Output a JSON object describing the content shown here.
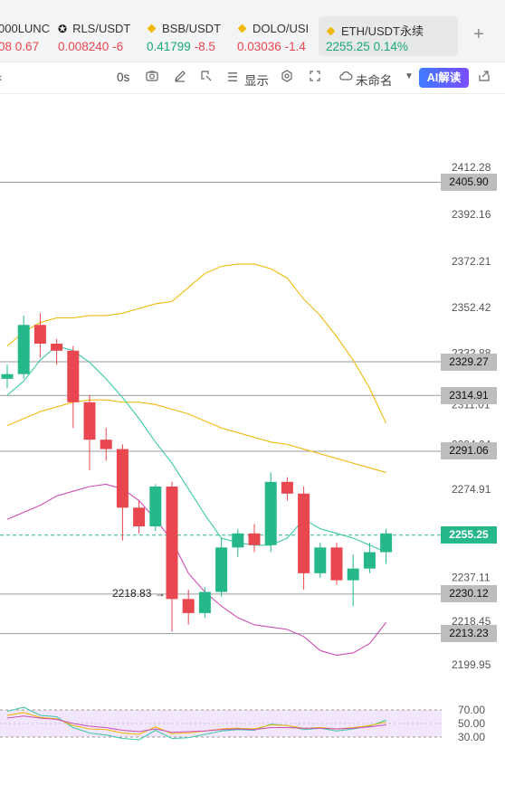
{
  "tabs": [
    {
      "name": "000LUNC",
      "price": "08",
      "change": "0.67",
      "icon": "none",
      "trend": "neg"
    },
    {
      "name": "RLS/USDT",
      "price": "0.008240",
      "change": "-6",
      "icon": "rls-icon",
      "trend": "neg"
    },
    {
      "name": "BSB/USDT",
      "price": "0.41799",
      "change": "-8.5",
      "icon": "diamond-icon",
      "trend": "pos"
    },
    {
      "name": "DOLO/USI",
      "price": "0.03036",
      "change": "-1.4",
      "icon": "diamond-icon",
      "trend": "neg"
    },
    {
      "name": "ETH/USDT永续",
      "price": "2255.25",
      "change": "0.14%",
      "icon": "diamond-icon",
      "trend": "pos"
    }
  ],
  "add_tab_label": "+",
  "toolbar": {
    "interval": "0s",
    "display_label": "显示",
    "layout_name": "未命名",
    "ai_label": "AI解读"
  },
  "chart_data": {
    "type": "candlestick",
    "symbol": "ETH/USDT永续",
    "y_ticks": [
      "2412.28",
      "2392.16",
      "2372.21",
      "2352.42",
      "2332.88",
      "2311.01",
      "2294.04",
      "2274.91",
      "2237.11",
      "2218.45",
      "2199.95"
    ],
    "ylim": [
      2195,
      2418
    ],
    "price_lines": [
      {
        "label": "2405.90",
        "value": 2405.9
      },
      {
        "label": "2329.27",
        "value": 2329.27
      },
      {
        "label": "2314.91",
        "value": 2314.91
      },
      {
        "label": "2291.06",
        "value": 2291.06
      },
      {
        "label": "2230.12",
        "value": 2230.12
      },
      {
        "label": "2213.23",
        "value": 2213.23
      }
    ],
    "last_price": {
      "label": "2255.25",
      "value": 2255.25
    },
    "low_marker": {
      "label": "2218.83",
      "value": 2218.83
    },
    "candles": [
      {
        "o": 2322,
        "h": 2328,
        "l": 2318,
        "c": 2324
      },
      {
        "o": 2324,
        "h": 2349,
        "l": 2322,
        "c": 2345
      },
      {
        "o": 2345,
        "h": 2350,
        "l": 2331,
        "c": 2337
      },
      {
        "o": 2337,
        "h": 2339,
        "l": 2328,
        "c": 2334
      },
      {
        "o": 2334,
        "h": 2336,
        "l": 2301,
        "c": 2312
      },
      {
        "o": 2312,
        "h": 2315,
        "l": 2283,
        "c": 2296
      },
      {
        "o": 2296,
        "h": 2301,
        "l": 2287,
        "c": 2292
      },
      {
        "o": 2292,
        "h": 2294,
        "l": 2253,
        "c": 2267
      },
      {
        "o": 2267,
        "h": 2270,
        "l": 2256,
        "c": 2259
      },
      {
        "o": 2259,
        "h": 2277,
        "l": 2257,
        "c": 2276
      },
      {
        "o": 2276,
        "h": 2278,
        "l": 2214,
        "c": 2228
      },
      {
        "o": 2228,
        "h": 2232,
        "l": 2217,
        "c": 2222
      },
      {
        "o": 2222,
        "h": 2233,
        "l": 2220,
        "c": 2231
      },
      {
        "o": 2231,
        "h": 2254,
        "l": 2229,
        "c": 2250
      },
      {
        "o": 2250,
        "h": 2258,
        "l": 2246,
        "c": 2256
      },
      {
        "o": 2256,
        "h": 2260,
        "l": 2248,
        "c": 2251
      },
      {
        "o": 2251,
        "h": 2282,
        "l": 2248,
        "c": 2278
      },
      {
        "o": 2278,
        "h": 2280,
        "l": 2270,
        "c": 2273
      },
      {
        "o": 2273,
        "h": 2276,
        "l": 2232,
        "c": 2239
      },
      {
        "o": 2239,
        "h": 2252,
        "l": 2237,
        "c": 2250
      },
      {
        "o": 2250,
        "h": 2252,
        "l": 2234,
        "c": 2236
      },
      {
        "o": 2236,
        "h": 2247,
        "l": 2225,
        "c": 2241
      },
      {
        "o": 2241,
        "h": 2252,
        "l": 2239,
        "c": 2248
      },
      {
        "o": 2248,
        "h": 2258,
        "l": 2243,
        "c": 2256
      }
    ],
    "ma_yellow": [
      2302,
      2305,
      2308,
      2310,
      2312,
      2313,
      2313,
      2312,
      2312,
      2311,
      2309,
      2307,
      2304,
      2301,
      2299,
      2297,
      2295,
      2294,
      2292,
      2290,
      2288,
      2286,
      2284,
      2282
    ],
    "boll_upper": [
      2336,
      2342,
      2346,
      2348,
      2348,
      2349,
      2349,
      2350,
      2352,
      2354,
      2355,
      2361,
      2367,
      2370,
      2371,
      2371,
      2369,
      2365,
      2356,
      2349,
      2340,
      2330,
      2318,
      2303
    ],
    "boll_mid": [
      2315,
      2321,
      2330,
      2336,
      2334,
      2329,
      2322,
      2314,
      2305,
      2295,
      2286,
      2275,
      2264,
      2254,
      2252,
      2251,
      2251,
      2254,
      2262,
      2258,
      2256,
      2254,
      2251,
      2248
    ],
    "boll_lower": [
      2262,
      2265,
      2268,
      2272,
      2274,
      2276,
      2277,
      2275,
      2270,
      2262,
      2253,
      2239,
      2231,
      2225,
      2220,
      2217,
      2216,
      2215,
      2212,
      2206,
      2204,
      2205,
      2209,
      2218
    ],
    "rsi": {
      "ticks": [
        "70.00",
        "50.00",
        "30.00"
      ],
      "ylim": [
        10,
        90
      ],
      "band": [
        30,
        70
      ],
      "rsi_a": [
        62,
        66,
        59,
        57,
        47,
        42,
        41,
        36,
        34,
        45,
        35,
        36,
        39,
        42,
        43,
        42,
        48,
        47,
        43,
        44,
        42,
        44,
        47,
        52
      ],
      "rsi_b": [
        68,
        74,
        62,
        60,
        44,
        36,
        33,
        28,
        26,
        40,
        28,
        29,
        34,
        39,
        41,
        40,
        49,
        47,
        41,
        43,
        39,
        42,
        46,
        55
      ],
      "rsi_c": [
        58,
        61,
        58,
        56,
        50,
        46,
        44,
        40,
        38,
        42,
        37,
        38,
        39,
        41,
        42,
        41,
        44,
        44,
        43,
        43,
        42,
        43,
        45,
        48
      ]
    }
  },
  "colors": {
    "up": "#26b88a",
    "down": "#e8474f",
    "ma_yellow": "#f0b90b",
    "boll_mid": "#3fc8a8",
    "boll_lower": "#cc4fb3",
    "boll_upper": "#f0b90b",
    "rsi_band": "#f1e6fb"
  }
}
